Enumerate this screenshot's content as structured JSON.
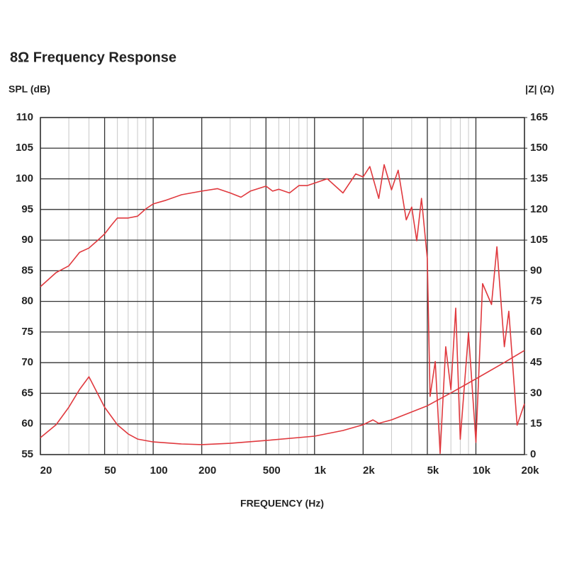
{
  "chart_data": {
    "type": "line",
    "title": "8Ω Frequency Response",
    "ylabel": "SPL (dB)",
    "y2label": "|Z| (Ω)",
    "xlabel": "FREQUENCY (Hz)",
    "xscale": "log",
    "grid": true,
    "xlim": [
      20,
      20000
    ],
    "xticks": [
      20,
      50,
      100,
      200,
      500,
      {
        "value": 1000,
        "label": "1k"
      },
      {
        "value": 2000,
        "label": "2k"
      },
      {
        "value": 5000,
        "label": "5k"
      },
      {
        "value": 10000,
        "label": "10k"
      },
      {
        "value": 20000,
        "label": "20k"
      }
    ],
    "xminorticks": [
      30,
      40,
      60,
      70,
      80,
      90,
      300,
      400,
      600,
      700,
      800,
      900,
      3000,
      4000,
      6000,
      7000,
      8000,
      9000
    ],
    "ylim": [
      55,
      110
    ],
    "yticks": [
      55,
      60,
      65,
      70,
      75,
      80,
      85,
      90,
      95,
      100,
      105,
      110
    ],
    "y2lim": [
      0,
      165
    ],
    "y2ticks": [
      0,
      15,
      30,
      45,
      60,
      75,
      90,
      105,
      120,
      135,
      150,
      165
    ],
    "series": [
      {
        "name": "SPL",
        "color": "#e0393e",
        "x": [
          20,
          25,
          30,
          35,
          40,
          45,
          50,
          55,
          60,
          70,
          80,
          90,
          100,
          120,
          150,
          200,
          250,
          300,
          350,
          400,
          500,
          550,
          600,
          700,
          800,
          900,
          1000,
          1200,
          1500,
          1800,
          2000,
          2200,
          2500,
          2700,
          3000,
          3300,
          3700,
          4000,
          4300,
          4600,
          5000,
          5200,
          5600,
          6000,
          6500,
          7000,
          7500,
          8000,
          9000,
          10000,
          11000,
          12500,
          13500,
          15000,
          16000,
          18000,
          20000
        ],
        "values": [
          82.4,
          84.7,
          85.8,
          88.0,
          88.7,
          89.9,
          91.0,
          92.4,
          93.6,
          93.6,
          93.9,
          95.1,
          95.9,
          96.5,
          97.4,
          98.0,
          98.4,
          97.7,
          97.0,
          98.0,
          98.8,
          98.0,
          98.3,
          97.7,
          98.9,
          98.9,
          99.3,
          100.0,
          97.7,
          100.8,
          100.3,
          102.0,
          96.8,
          102.3,
          98.2,
          101.4,
          93.3,
          95.4,
          89.9,
          96.8,
          87.0,
          64.5,
          70.2,
          55.2,
          72.6,
          65.6,
          78.9,
          57.5,
          74.9,
          57.0,
          82.9,
          79.5,
          88.9,
          72.6,
          78.4,
          59.8,
          63.3
        ]
      },
      {
        "name": "Impedance",
        "color": "#e0393e",
        "axis": "y2",
        "x": [
          20,
          25,
          30,
          35,
          40,
          45,
          50,
          60,
          70,
          80,
          100,
          150,
          200,
          300,
          500,
          1000,
          1500,
          2000,
          2300,
          2500,
          3000,
          5000,
          7000,
          10000,
          15000,
          20000
        ],
        "values": [
          8.3,
          14.6,
          23.2,
          31.9,
          38.1,
          30.2,
          23.2,
          14.6,
          10.1,
          7.6,
          6.2,
          5.2,
          4.9,
          5.5,
          6.9,
          9.0,
          11.8,
          14.6,
          17.0,
          15.3,
          17.0,
          23.9,
          30.2,
          37.1,
          45.1,
          51.0
        ]
      }
    ]
  }
}
